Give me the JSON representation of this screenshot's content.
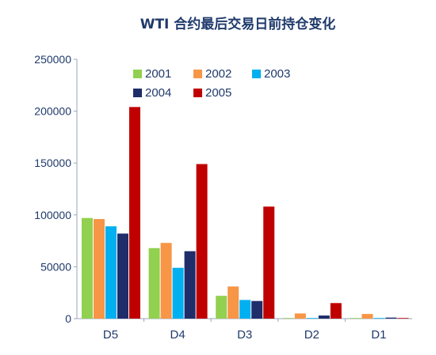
{
  "chart_data": {
    "type": "bar",
    "title": "WTI 合约最后交易日前持仓变化",
    "xlabel": "",
    "ylabel": "",
    "categories": [
      "D5",
      "D4",
      "D3",
      "D2",
      "D1"
    ],
    "ylim": [
      0,
      250000
    ],
    "yticks": [
      0,
      50000,
      100000,
      150000,
      200000,
      250000
    ],
    "grid": false,
    "legend_position": "top-center",
    "series": [
      {
        "name": "2001",
        "color": "#92d050",
        "values": [
          97000,
          68000,
          22000,
          500,
          500
        ]
      },
      {
        "name": "2002",
        "color": "#f79646",
        "values": [
          96000,
          73000,
          31000,
          5000,
          4500
        ]
      },
      {
        "name": "2003",
        "color": "#00b0f0",
        "values": [
          89000,
          49000,
          18000,
          500,
          500
        ]
      },
      {
        "name": "2004",
        "color": "#1f2d6b",
        "values": [
          82000,
          65000,
          17000,
          3000,
          1000
        ]
      },
      {
        "name": "2005",
        "color": "#c00000",
        "values": [
          204000,
          149000,
          108000,
          15000,
          0
        ]
      }
    ]
  }
}
